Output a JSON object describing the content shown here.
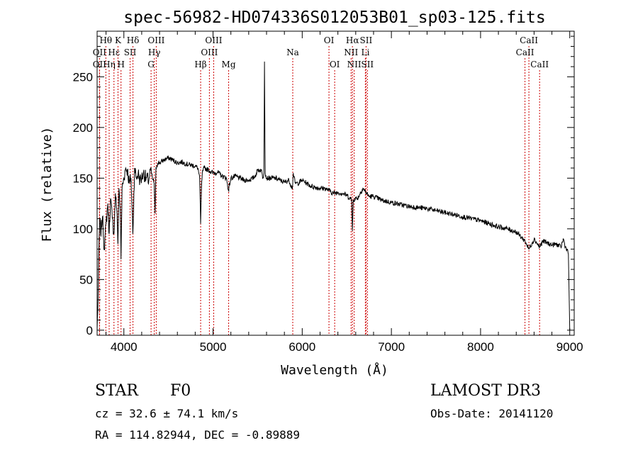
{
  "chart_data": {
    "type": "line",
    "title": "spec-56982-HD074336S012053B01_sp03-125.fits",
    "xlabel": "Wavelength (Å)",
    "ylabel": "Flux (relative)",
    "xlim": [
      3700,
      9050
    ],
    "ylim": [
      -5,
      295
    ],
    "x_ticks": [
      4000,
      5000,
      6000,
      7000,
      8000,
      9000
    ],
    "y_ticks": [
      0,
      50,
      100,
      150,
      200,
      250
    ],
    "line_color": "#000000",
    "marker_color": "#cc0000",
    "series": [
      {
        "name": "flux",
        "x": [
          3700,
          3710,
          3720,
          3730,
          3740,
          3760,
          3780,
          3800,
          3820,
          3835,
          3850,
          3870,
          3889,
          3905,
          3920,
          3933,
          3945,
          3960,
          3968,
          3980,
          4000,
          4020,
          4040,
          4060,
          4080,
          4101,
          4120,
          4140,
          4160,
          4180,
          4200,
          4220,
          4250,
          4280,
          4300,
          4320,
          4340,
          4350,
          4360,
          4380,
          4400,
          4450,
          4500,
          4550,
          4600,
          4650,
          4700,
          4750,
          4800,
          4830,
          4850,
          4861,
          4870,
          4880,
          4900,
          4950,
          5000,
          5050,
          5100,
          5150,
          5172,
          5200,
          5250,
          5300,
          5350,
          5400,
          5450,
          5470,
          5500,
          5540,
          5560,
          5570,
          5577,
          5585,
          5600,
          5650,
          5700,
          5750,
          5800,
          5850,
          5890,
          5900,
          5920,
          5950,
          6000,
          6050,
          6100,
          6150,
          6200,
          6250,
          6300,
          6350,
          6400,
          6450,
          6500,
          6540,
          6555,
          6563,
          6572,
          6590,
          6620,
          6680,
          6750,
          6800,
          6900,
          7000,
          7100,
          7200,
          7300,
          7400,
          7500,
          7600,
          7700,
          7800,
          7900,
          8000,
          8100,
          8200,
          8300,
          8400,
          8498,
          8542,
          8600,
          8662,
          8700,
          8750,
          8800,
          8850,
          8900,
          8930,
          8950,
          8970,
          8985,
          9000
        ],
        "y": [
          0,
          30,
          80,
          110,
          95,
          112,
          80,
          105,
          125,
          95,
          130,
          110,
          95,
          135,
          120,
          85,
          140,
          120,
          70,
          140,
          150,
          160,
          158,
          145,
          150,
          95,
          160,
          150,
          155,
          148,
          150,
          155,
          150,
          148,
          160,
          150,
          145,
          115,
          160,
          165,
          165,
          168,
          170,
          168,
          165,
          166,
          164,
          163,
          162,
          160,
          150,
          105,
          140,
          155,
          160,
          158,
          155,
          156,
          152,
          150,
          138,
          150,
          152,
          150,
          148,
          148,
          150,
          152,
          158,
          158,
          150,
          155,
          265,
          155,
          150,
          150,
          150,
          148,
          146,
          148,
          140,
          155,
          145,
          145,
          148,
          145,
          142,
          141,
          140,
          140,
          138,
          135,
          136,
          135,
          133,
          130,
          128,
          98,
          128,
          130,
          130,
          140,
          132,
          132,
          128,
          126,
          124,
          122,
          121,
          120,
          118,
          116,
          114,
          112,
          110,
          108,
          105,
          102,
          100,
          97,
          88,
          80,
          90,
          82,
          88,
          86,
          84,
          85,
          82,
          90,
          82,
          80,
          75,
          0
        ]
      }
    ],
    "annotations": [
      {
        "label": "Hθ",
        "x": 3798,
        "row": 1
      },
      {
        "label": "OII",
        "x": 3727,
        "row": 2
      },
      {
        "label": "OII",
        "x": 3727,
        "row": 3
      },
      {
        "label": "K",
        "x": 3934,
        "row": 1
      },
      {
        "label": "Hε",
        "x": 3889,
        "row": 2
      },
      {
        "label": "Hη",
        "x": 3835,
        "row": 3
      },
      {
        "label": "SII",
        "x": 4070,
        "row": 2
      },
      {
        "label": "H",
        "x": 3968,
        "row": 3
      },
      {
        "label": "Hδ",
        "x": 4102,
        "row": 1
      },
      {
        "label": "OIII",
        "x": 4363,
        "row": 1
      },
      {
        "label": "Hγ",
        "x": 4341,
        "row": 2
      },
      {
        "label": "G",
        "x": 4305,
        "row": 3
      },
      {
        "label": "Hβ",
        "x": 4861,
        "row": 3
      },
      {
        "label": "OIII",
        "x": 5007,
        "row": 1
      },
      {
        "label": "OIII",
        "x": 4959,
        "row": 2
      },
      {
        "label": "Mg",
        "x": 5175,
        "row": 3
      },
      {
        "label": "Na",
        "x": 5894,
        "row": 2
      },
      {
        "label": "OI",
        "x": 6300,
        "row": 1
      },
      {
        "label": "OI",
        "x": 6364,
        "row": 3
      },
      {
        "label": "Hα",
        "x": 6563,
        "row": 1
      },
      {
        "label": "SII",
        "x": 6716,
        "row": 1
      },
      {
        "label": "NII",
        "x": 6548,
        "row": 2
      },
      {
        "label": "Li",
        "x": 6708,
        "row": 2
      },
      {
        "label": "NII",
        "x": 6583,
        "row": 3
      },
      {
        "label": "SII",
        "x": 6731,
        "row": 3
      },
      {
        "label": "CaII",
        "x": 8542,
        "row": 1
      },
      {
        "label": "CaII",
        "x": 8498,
        "row": 2
      },
      {
        "label": "CaII",
        "x": 8662,
        "row": 3
      }
    ]
  },
  "info": {
    "object_type": "STAR",
    "subclass": "F0",
    "survey": "LAMOST DR3",
    "redshift": "cz = 32.6 ± 74.1 km/s",
    "obs_date": "Obs-Date: 20141120",
    "coords": "RA = 114.82944, DEC =  -0.89889"
  }
}
